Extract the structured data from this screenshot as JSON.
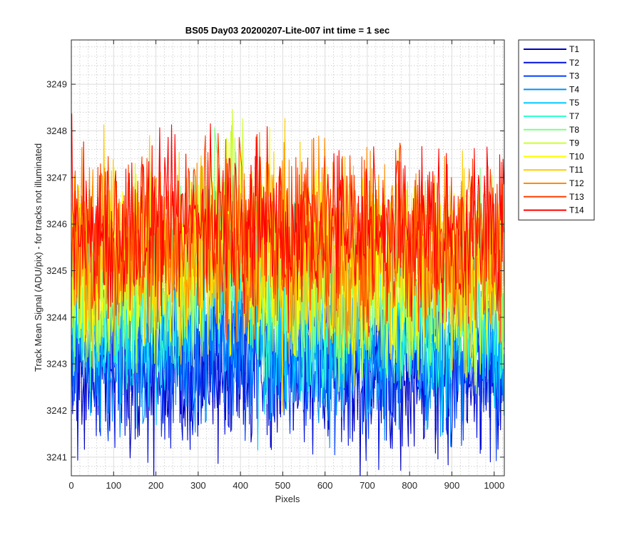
{
  "chart_data": {
    "type": "line",
    "title": "BS05 Day03 20200207-Lite-007 int time = 1 sec",
    "xlabel": "Pixels",
    "ylabel": "Track Mean Signal (ADU/pix) - for tracks not illuminated",
    "xlim": [
      0,
      1024
    ],
    "ylim": [
      3240.6,
      3249.95
    ],
    "x_ticks": [
      0,
      100,
      200,
      300,
      400,
      500,
      600,
      700,
      800,
      900,
      1000
    ],
    "y_ticks": [
      3241,
      3242,
      3243,
      3244,
      3245,
      3246,
      3247,
      3248,
      3249
    ],
    "grid": "major and minor",
    "legend_position": "outside-top-right",
    "series": [
      {
        "name": "T1",
        "color": "#0000bf",
        "mean": 3242.9,
        "amplitude": 0.9
      },
      {
        "name": "T2",
        "color": "#0010dd",
        "mean": 3243.0,
        "amplitude": 0.9
      },
      {
        "name": "T3",
        "color": "#0040ff",
        "mean": 3243.2,
        "amplitude": 0.85
      },
      {
        "name": "T4",
        "color": "#0090ff",
        "mean": 3243.4,
        "amplitude": 0.85
      },
      {
        "name": "T5",
        "color": "#00ccff",
        "mean": 3243.8,
        "amplitude": 0.9
      },
      {
        "name": "T7",
        "color": "#33ffcc",
        "mean": 3244.2,
        "amplitude": 0.95
      },
      {
        "name": "T8",
        "color": "#80ff80",
        "mean": 3244.6,
        "amplitude": 0.95
      },
      {
        "name": "T9",
        "color": "#ccff33",
        "mean": 3244.9,
        "amplitude": 1.0
      },
      {
        "name": "T10",
        "color": "#ffff00",
        "mean": 3245.1,
        "amplitude": 1.0
      },
      {
        "name": "T11",
        "color": "#ffcc00",
        "mean": 3245.3,
        "amplitude": 1.0
      },
      {
        "name": "T12",
        "color": "#ff8c00",
        "mean": 3245.5,
        "amplitude": 1.0
      },
      {
        "name": "T13",
        "color": "#ff4000",
        "mean": 3245.7,
        "amplitude": 0.95
      },
      {
        "name": "T14",
        "color": "#ff0000",
        "mean": 3245.9,
        "amplitude": 0.9
      }
    ]
  }
}
